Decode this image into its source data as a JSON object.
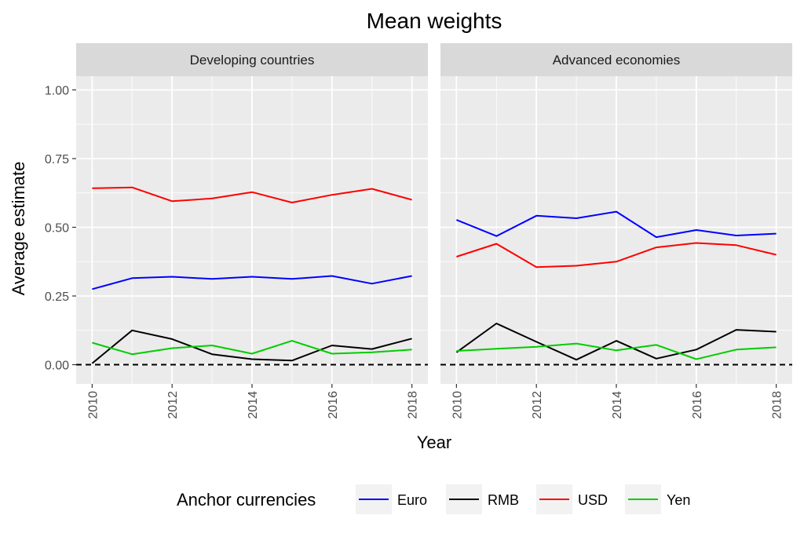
{
  "chart_data": {
    "type": "line",
    "title": "Mean weights",
    "xlabel": "Year",
    "ylabel": "Average estimate",
    "x": [
      2010,
      2011,
      2012,
      2013,
      2014,
      2015,
      2016,
      2017,
      2018
    ],
    "xticks": [
      "2010",
      "2012",
      "2014",
      "2016",
      "2018"
    ],
    "yticks": [
      "0.00",
      "0.25",
      "0.50",
      "0.75",
      "1.00"
    ],
    "ylim": [
      -0.07,
      1.05
    ],
    "reference_line": 0,
    "legend": {
      "title": "Anchor currencies",
      "position": "bottom",
      "entries": [
        {
          "name": "Euro",
          "color": "#0000ff"
        },
        {
          "name": "RMB",
          "color": "#000000"
        },
        {
          "name": "USD",
          "color": "#ff0000"
        },
        {
          "name": "Yen",
          "color": "#00cd00"
        }
      ]
    },
    "panels": [
      {
        "label": "Developing countries",
        "series": [
          {
            "name": "Euro",
            "color": "#0000ff",
            "values": [
              0.275,
              0.315,
              0.32,
              0.312,
              0.32,
              0.312,
              0.323,
              0.295,
              0.323
            ]
          },
          {
            "name": "RMB",
            "color": "#000000",
            "values": [
              0.005,
              0.125,
              0.093,
              0.038,
              0.02,
              0.015,
              0.07,
              0.057,
              0.095
            ]
          },
          {
            "name": "USD",
            "color": "#ff0000",
            "values": [
              0.642,
              0.645,
              0.595,
              0.605,
              0.628,
              0.59,
              0.618,
              0.64,
              0.6
            ]
          },
          {
            "name": "Yen",
            "color": "#00cd00",
            "values": [
              0.08,
              0.038,
              0.06,
              0.07,
              0.04,
              0.087,
              0.04,
              0.045,
              0.055
            ]
          }
        ]
      },
      {
        "label": "Advanced economies",
        "series": [
          {
            "name": "Euro",
            "color": "#0000ff",
            "values": [
              0.527,
              0.468,
              0.542,
              0.533,
              0.557,
              0.464,
              0.49,
              0.47,
              0.477
            ]
          },
          {
            "name": "RMB",
            "color": "#000000",
            "values": [
              0.045,
              0.15,
              0.083,
              0.018,
              0.087,
              0.022,
              0.055,
              0.127,
              0.12
            ]
          },
          {
            "name": "USD",
            "color": "#ff0000",
            "values": [
              0.393,
              0.44,
              0.355,
              0.36,
              0.375,
              0.427,
              0.443,
              0.435,
              0.4
            ]
          },
          {
            "name": "Yen",
            "color": "#00cd00",
            "values": [
              0.05,
              0.058,
              0.065,
              0.077,
              0.052,
              0.072,
              0.02,
              0.055,
              0.063
            ]
          }
        ]
      }
    ]
  }
}
